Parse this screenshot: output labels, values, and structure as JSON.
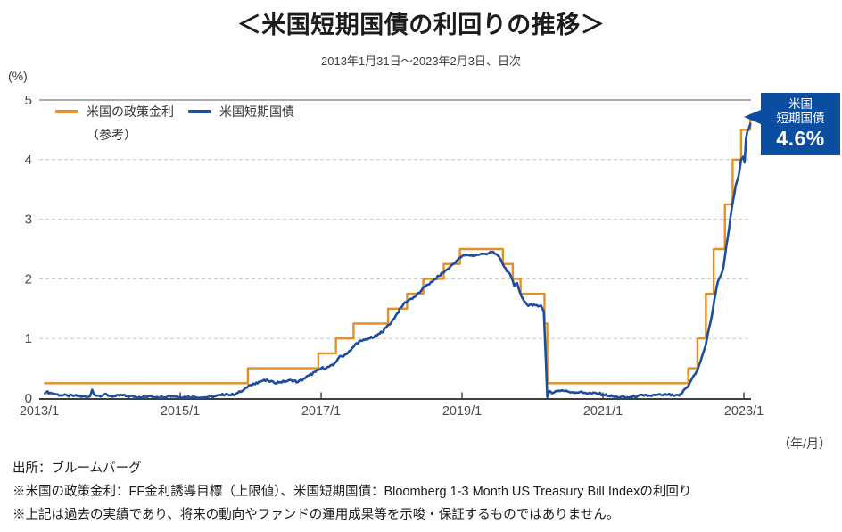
{
  "header": {
    "title": "＜米国短期国債の利回りの推移＞",
    "subtitle": "2013年1月31日～2023年2月3日、日次"
  },
  "legend": {
    "items": [
      {
        "label": "米国の政策金利",
        "note": "（参考）",
        "color": "#E58E26"
      },
      {
        "label": "米国短期国債",
        "color": "#1D4D9C"
      }
    ]
  },
  "annotation": {
    "line1": "米国",
    "line2": "短期国債",
    "value": "4.6%",
    "bg": "#0B4DA1"
  },
  "footer": {
    "line1": "出所：ブルームバーグ",
    "line2": "※米国の政策金利：FF金利誘導目標（上限値）、米国短期国債：Bloomberg 1-3 Month US Treasury Bill Indexの利回り",
    "line3": "※上記は過去の実績であり、将来の動向やファンドの運用成果等を示唆・保証するものではありません。"
  },
  "chart_data": {
    "type": "line",
    "title": "＜米国短期国債の利回りの推移＞",
    "subtitle": "2013年1月31日～2023年2月3日、日次",
    "x_axis": {
      "label": "（年/月）",
      "tick_years": [
        2013,
        2015,
        2017,
        2019,
        2021,
        2023
      ],
      "tick_labels": [
        "2013/1",
        "2015/1",
        "2017/1",
        "2019/1",
        "2021/1",
        "2023/1"
      ],
      "range": [
        2013.05,
        2023.15
      ]
    },
    "y_axis": {
      "label": "(%)",
      "ticks": [
        0,
        1,
        2,
        3,
        4,
        5
      ],
      "range": [
        0,
        5
      ]
    },
    "grid": {
      "dashed_levels": [
        1,
        2,
        3,
        4
      ],
      "solid_top": 5
    },
    "legend_position": "top-left",
    "end_label": {
      "series": "米国短期国債",
      "value": 4.6
    },
    "series": [
      {
        "name": "米国の政策金利（参考）",
        "type": "step",
        "color": "#E58E26",
        "points": [
          [
            2013.08,
            0.25
          ],
          [
            2015.96,
            0.5
          ],
          [
            2016.96,
            0.75
          ],
          [
            2017.21,
            1.0
          ],
          [
            2017.46,
            1.25
          ],
          [
            2017.95,
            1.5
          ],
          [
            2018.22,
            1.75
          ],
          [
            2018.45,
            2.0
          ],
          [
            2018.74,
            2.25
          ],
          [
            2018.97,
            2.5
          ],
          [
            2019.58,
            2.25
          ],
          [
            2019.72,
            2.0
          ],
          [
            2019.83,
            1.75
          ],
          [
            2020.17,
            1.25
          ],
          [
            2020.21,
            0.25
          ],
          [
            2022.21,
            0.5
          ],
          [
            2022.34,
            1.0
          ],
          [
            2022.46,
            1.75
          ],
          [
            2022.57,
            2.5
          ],
          [
            2022.73,
            3.25
          ],
          [
            2022.84,
            4.0
          ],
          [
            2022.96,
            4.5
          ],
          [
            2023.09,
            4.75
          ]
        ]
      },
      {
        "name": "米国短期国債",
        "type": "line",
        "color": "#1D4D9C",
        "noise": 0.02,
        "points": [
          [
            2013.08,
            0.08
          ],
          [
            2013.1,
            0.1
          ],
          [
            2013.15,
            0.09
          ],
          [
            2013.22,
            0.07
          ],
          [
            2013.3,
            0.05
          ],
          [
            2013.4,
            0.04
          ],
          [
            2013.5,
            0.04
          ],
          [
            2013.58,
            0.03
          ],
          [
            2013.67,
            0.02
          ],
          [
            2013.72,
            0.03
          ],
          [
            2013.75,
            0.14
          ],
          [
            2013.79,
            0.05
          ],
          [
            2013.85,
            0.04
          ],
          [
            2013.92,
            0.06
          ],
          [
            2014.0,
            0.04
          ],
          [
            2014.08,
            0.03
          ],
          [
            2014.17,
            0.05
          ],
          [
            2014.25,
            0.03
          ],
          [
            2014.33,
            0.03
          ],
          [
            2014.42,
            0.02
          ],
          [
            2014.5,
            0.02
          ],
          [
            2014.58,
            0.03
          ],
          [
            2014.67,
            0.02
          ],
          [
            2014.75,
            0.02
          ],
          [
            2014.83,
            0.04
          ],
          [
            2014.92,
            0.03
          ],
          [
            2015.0,
            0.02
          ],
          [
            2015.1,
            0.02
          ],
          [
            2015.2,
            0.02
          ],
          [
            2015.3,
            0.01
          ],
          [
            2015.4,
            0.02
          ],
          [
            2015.5,
            0.03
          ],
          [
            2015.58,
            0.05
          ],
          [
            2015.65,
            0.07
          ],
          [
            2015.72,
            0.05
          ],
          [
            2015.8,
            0.08
          ],
          [
            2015.88,
            0.12
          ],
          [
            2015.95,
            0.18
          ],
          [
            2016.0,
            0.22
          ],
          [
            2016.08,
            0.26
          ],
          [
            2016.17,
            0.29
          ],
          [
            2016.25,
            0.29
          ],
          [
            2016.33,
            0.26
          ],
          [
            2016.42,
            0.27
          ],
          [
            2016.5,
            0.28
          ],
          [
            2016.58,
            0.3
          ],
          [
            2016.67,
            0.27
          ],
          [
            2016.75,
            0.32
          ],
          [
            2016.83,
            0.38
          ],
          [
            2016.92,
            0.44
          ],
          [
            2017.0,
            0.5
          ],
          [
            2017.08,
            0.51
          ],
          [
            2017.17,
            0.55
          ],
          [
            2017.25,
            0.68
          ],
          [
            2017.33,
            0.72
          ],
          [
            2017.42,
            0.8
          ],
          [
            2017.5,
            0.92
          ],
          [
            2017.58,
            0.96
          ],
          [
            2017.67,
            1.0
          ],
          [
            2017.75,
            1.02
          ],
          [
            2017.83,
            1.08
          ],
          [
            2017.92,
            1.18
          ],
          [
            2018.0,
            1.28
          ],
          [
            2018.08,
            1.42
          ],
          [
            2018.17,
            1.58
          ],
          [
            2018.25,
            1.65
          ],
          [
            2018.33,
            1.7
          ],
          [
            2018.42,
            1.8
          ],
          [
            2018.5,
            1.9
          ],
          [
            2018.58,
            1.95
          ],
          [
            2018.67,
            2.05
          ],
          [
            2018.75,
            2.12
          ],
          [
            2018.83,
            2.2
          ],
          [
            2018.92,
            2.3
          ],
          [
            2019.0,
            2.38
          ],
          [
            2019.08,
            2.4
          ],
          [
            2019.17,
            2.39
          ],
          [
            2019.25,
            2.41
          ],
          [
            2019.33,
            2.42
          ],
          [
            2019.42,
            2.45
          ],
          [
            2019.5,
            2.4
          ],
          [
            2019.55,
            2.32
          ],
          [
            2019.6,
            2.2
          ],
          [
            2019.65,
            2.12
          ],
          [
            2019.7,
            2.02
          ],
          [
            2019.74,
            1.88
          ],
          [
            2019.78,
            1.93
          ],
          [
            2019.82,
            1.78
          ],
          [
            2019.87,
            1.65
          ],
          [
            2019.92,
            1.57
          ],
          [
            2020.0,
            1.55
          ],
          [
            2020.06,
            1.56
          ],
          [
            2020.12,
            1.55
          ],
          [
            2020.16,
            1.45
          ],
          [
            2020.19,
            0.6
          ],
          [
            2020.21,
            0.02
          ],
          [
            2020.24,
            0.12
          ],
          [
            2020.28,
            0.08
          ],
          [
            2020.33,
            0.12
          ],
          [
            2020.42,
            0.13
          ],
          [
            2020.5,
            0.11
          ],
          [
            2020.58,
            0.1
          ],
          [
            2020.67,
            0.1
          ],
          [
            2020.75,
            0.09
          ],
          [
            2020.83,
            0.08
          ],
          [
            2020.92,
            0.08
          ],
          [
            2021.0,
            0.06
          ],
          [
            2021.08,
            0.04
          ],
          [
            2021.17,
            0.02
          ],
          [
            2021.25,
            0.02
          ],
          [
            2021.33,
            0.01
          ],
          [
            2021.42,
            0.02
          ],
          [
            2021.5,
            0.04
          ],
          [
            2021.58,
            0.04
          ],
          [
            2021.67,
            0.04
          ],
          [
            2021.75,
            0.05
          ],
          [
            2021.83,
            0.05
          ],
          [
            2021.92,
            0.06
          ],
          [
            2022.0,
            0.04
          ],
          [
            2022.08,
            0.04
          ],
          [
            2022.13,
            0.1
          ],
          [
            2022.17,
            0.16
          ],
          [
            2022.21,
            0.2
          ],
          [
            2022.25,
            0.3
          ],
          [
            2022.29,
            0.38
          ],
          [
            2022.33,
            0.45
          ],
          [
            2022.38,
            0.6
          ],
          [
            2022.42,
            0.75
          ],
          [
            2022.46,
            0.9
          ],
          [
            2022.5,
            1.15
          ],
          [
            2022.54,
            1.35
          ],
          [
            2022.58,
            1.65
          ],
          [
            2022.63,
            1.95
          ],
          [
            2022.67,
            2.05
          ],
          [
            2022.71,
            2.2
          ],
          [
            2022.75,
            2.55
          ],
          [
            2022.79,
            2.85
          ],
          [
            2022.83,
            3.2
          ],
          [
            2022.88,
            3.55
          ],
          [
            2022.92,
            3.7
          ],
          [
            2022.96,
            4.0
          ],
          [
            2022.99,
            4.05
          ],
          [
            2023.01,
            3.95
          ],
          [
            2023.03,
            4.35
          ],
          [
            2023.05,
            4.48
          ],
          [
            2023.07,
            4.52
          ],
          [
            2023.09,
            4.6
          ]
        ]
      }
    ]
  }
}
